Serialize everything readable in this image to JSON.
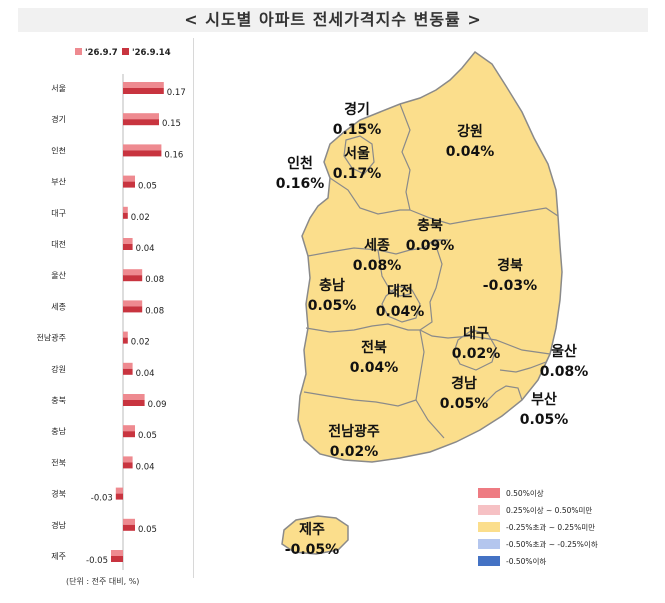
{
  "title": "< 시도별 아파트 전세가격지수 변동률 >",
  "unit_note": "(단위 : 전주 대비, %)",
  "chart_data": {
    "type": "bar",
    "orientation": "horizontal",
    "categories": [
      "서울",
      "경기",
      "인천",
      "부산",
      "대구",
      "대전",
      "울산",
      "세종",
      "전남광주",
      "강원",
      "충북",
      "충남",
      "전북",
      "경북",
      "경남",
      "제주"
    ],
    "series": [
      {
        "name": "'26.9.7",
        "color": "#ee8a90",
        "values": [
          0.17,
          0.15,
          0.16,
          0.05,
          0.02,
          0.04,
          0.08,
          0.08,
          0.02,
          0.04,
          0.09,
          0.05,
          0.04,
          -0.03,
          0.05,
          -0.05
        ]
      },
      {
        "name": "'26.9.14",
        "color": "#c8343f",
        "values": [
          0.17,
          0.15,
          0.16,
          0.05,
          0.02,
          0.04,
          0.08,
          0.08,
          0.02,
          0.04,
          0.09,
          0.05,
          0.04,
          -0.03,
          0.05,
          -0.05
        ]
      }
    ],
    "data_labels": [
      "0.17",
      "0.15",
      "0.16",
      "0.05",
      "0.02",
      "0.04",
      "0.08",
      "0.08",
      "0.02",
      "0.04",
      "0.09",
      "0.05",
      "0.04",
      "-0.03",
      "0.05",
      "-0.05"
    ],
    "legend_position": "top",
    "grid": false
  },
  "map": {
    "regions": [
      {
        "name": "경기",
        "value": "0.15%",
        "color": "#fbde8c"
      },
      {
        "name": "서울",
        "value": "0.17%",
        "color": "#fbde8c"
      },
      {
        "name": "인천",
        "value": "0.16%",
        "color": "#fbde8c"
      },
      {
        "name": "강원",
        "value": "0.04%",
        "color": "#fbde8c"
      },
      {
        "name": "충북",
        "value": "0.09%",
        "color": "#fbde8c"
      },
      {
        "name": "세종",
        "value": "0.08%",
        "color": "#fbde8c"
      },
      {
        "name": "충남",
        "value": "0.05%",
        "color": "#fbde8c"
      },
      {
        "name": "대전",
        "value": "0.04%",
        "color": "#fbde8c"
      },
      {
        "name": "경북",
        "value": "-0.03%",
        "color": "#fbde8c"
      },
      {
        "name": "대구",
        "value": "0.02%",
        "color": "#fbde8c"
      },
      {
        "name": "전북",
        "value": "0.04%",
        "color": "#fbde8c"
      },
      {
        "name": "울산",
        "value": "0.08%",
        "color": "#fbde8c"
      },
      {
        "name": "경남",
        "value": "0.05%",
        "color": "#fbde8c"
      },
      {
        "name": "부산",
        "value": "0.05%",
        "color": "#fbde8c"
      },
      {
        "name": "전남광주",
        "value": "0.02%",
        "color": "#fbde8c"
      },
      {
        "name": "제주",
        "value": "-0.05%",
        "color": "#fbde8c"
      }
    ],
    "legend": [
      {
        "label": "0.50%이상",
        "color": "#ee7b82"
      },
      {
        "label": "0.25%이상 ~ 0.50%미만",
        "color": "#f6c1c4"
      },
      {
        "label": "-0.25%초과 ~ 0.25%미만",
        "color": "#fbde8c"
      },
      {
        "label": "-0.50%초과 ~ -0.25%이하",
        "color": "#b4c6ee"
      },
      {
        "label": "-0.50%이하",
        "color": "#4472c4"
      }
    ]
  }
}
